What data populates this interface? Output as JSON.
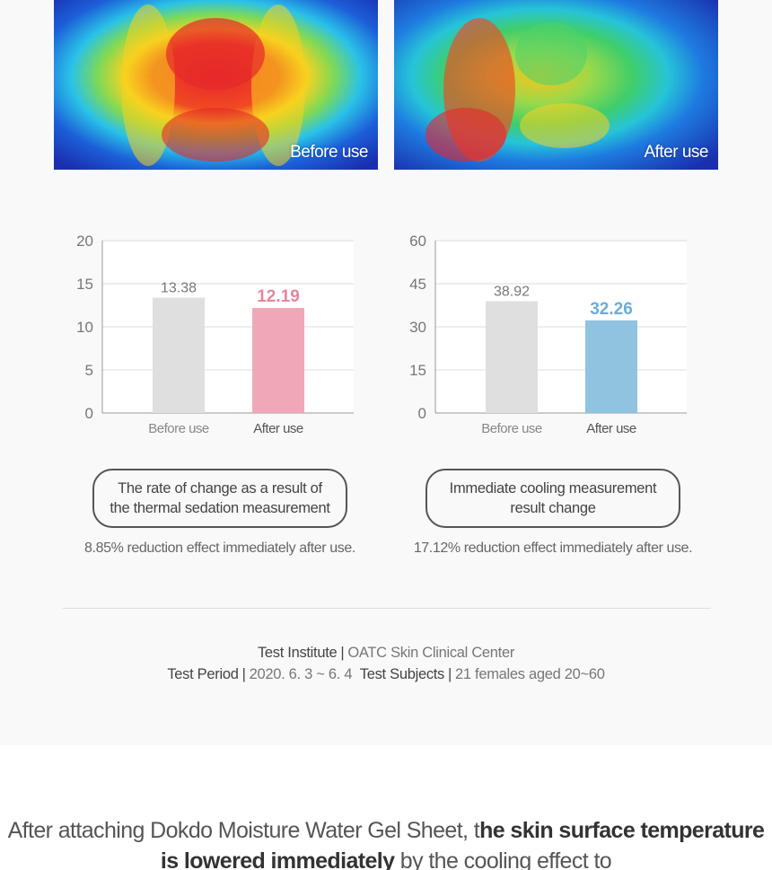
{
  "thermal_images": {
    "before_label": "Before use",
    "after_label": "After use"
  },
  "chart_data": [
    {
      "type": "bar",
      "categories": [
        "Before use",
        "After use"
      ],
      "values": [
        13.38,
        12.19
      ],
      "value_labels": [
        "13.38",
        "12.19"
      ],
      "yticks": [
        "0",
        "5",
        "10",
        "15",
        "20"
      ],
      "ylim": [
        0,
        20
      ],
      "colors": [
        "#e0dfe0",
        "#f0a8b8"
      ],
      "label_colors": [
        "#777777",
        "#e8859c"
      ],
      "grid": true,
      "caption": "The rate of change as a result of the thermal sedation measurement",
      "result": "8.85% reduction effect immediately after use."
    },
    {
      "type": "bar",
      "categories": [
        "Before use",
        "After use"
      ],
      "values": [
        38.92,
        32.26
      ],
      "value_labels": [
        "38.92",
        "32.26"
      ],
      "yticks": [
        "0",
        "15",
        "30",
        "45",
        "60"
      ],
      "ylim": [
        0,
        60
      ],
      "colors": [
        "#e0dfe0",
        "#8fc3e0"
      ],
      "label_colors": [
        "#777777",
        "#6aaed6"
      ],
      "grid": true,
      "caption": "Immediate cooling measurement result change",
      "result": "17.12% reduction effect immediately after use."
    }
  ],
  "test_info": {
    "institute_key": "Test Institute",
    "institute_value": "OATC Skin Clinical Center",
    "period_key": "Test Period",
    "period_value": "2020. 6. 3 ~ 6. 4",
    "subjects_key": "Test Subjects",
    "subjects_value": "21 females aged 20~60",
    "separator": "|"
  },
  "headline": {
    "part1": "After attaching Dokdo Moisture Water Gel Sheet, t",
    "bold1": "he skin surface temperature is lowered immediately",
    "part2": " by the cooling effect to"
  }
}
